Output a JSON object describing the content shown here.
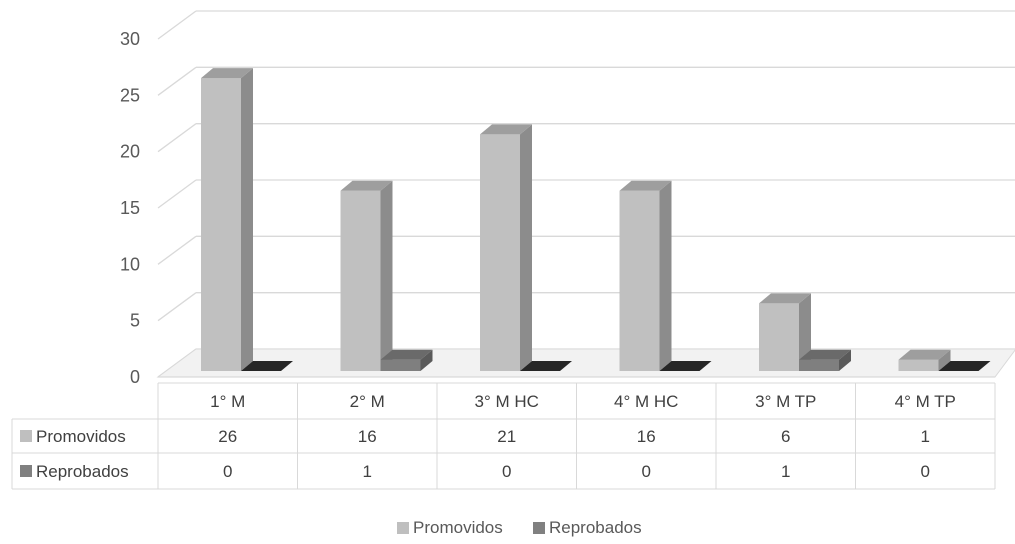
{
  "chart_data": {
    "type": "bar",
    "title": "",
    "xlabel": "",
    "ylabel": "",
    "ylim": [
      0,
      30
    ],
    "yticks": [
      0,
      5,
      10,
      15,
      20,
      25,
      30
    ],
    "grid": true,
    "three_d": true,
    "legend_position": "bottom",
    "data_table": true,
    "categories": [
      "1° M",
      "2° M",
      "3° M HC",
      "4° M HC",
      "3° M TP",
      "4° M TP"
    ],
    "series": [
      {
        "name": "Promovidos",
        "values": [
          26,
          16,
          21,
          16,
          6,
          1
        ],
        "color": "#bfbfbf"
      },
      {
        "name": "Reprobados",
        "values": [
          0,
          1,
          0,
          0,
          1,
          0
        ],
        "color": "#808080"
      }
    ]
  }
}
